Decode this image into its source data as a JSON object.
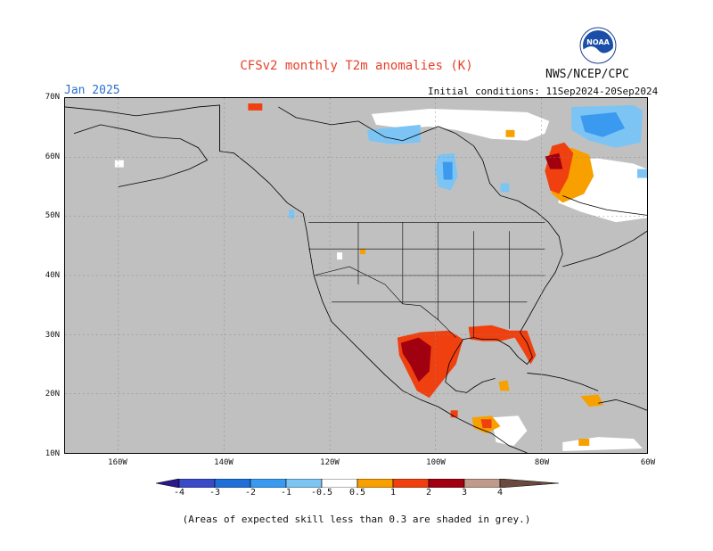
{
  "header": {
    "title": "CFSv2 monthly T2m anomalies (K)",
    "month": "Jan 2025",
    "org": "NWS/NCEP/CPC",
    "initial_conditions": "Initial conditions: 11Sep2024-20Sep2024",
    "logo_text": "NOAA"
  },
  "axes": {
    "lat_labels": [
      "70N",
      "60N",
      "50N",
      "40N",
      "30N",
      "20N",
      "10N"
    ],
    "lon_labels": [
      "160W",
      "140W",
      "120W",
      "100W",
      "80W",
      "60W"
    ]
  },
  "colorbar": {
    "ticks": [
      "-4",
      "-3",
      "-2",
      "-1",
      "-0.5",
      "0.5",
      "1",
      "2",
      "3",
      "4"
    ],
    "colors": [
      "#2a1a8a",
      "#3a4bc8",
      "#1f6fd8",
      "#3a9af0",
      "#7cc4f4",
      "#ffffff",
      "#f7a000",
      "#f04010",
      "#a00010",
      "#c09a8a",
      "#6a4a40"
    ]
  },
  "footer": {
    "note": "(Areas of expected skill less than 0.3 are shaded in grey.)"
  },
  "map": {
    "background": "#c0c0c0",
    "land_color": "#ffffff",
    "coastline_color": "#000000"
  }
}
